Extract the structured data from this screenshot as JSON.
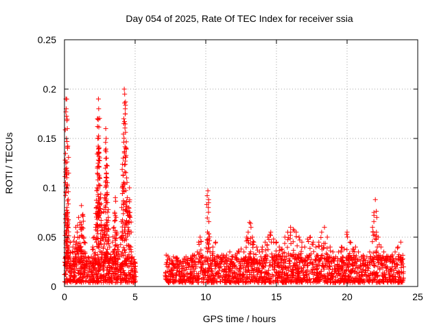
{
  "chart_data": {
    "type": "scatter",
    "title": "Day 054 of 2025, Rate Of TEC Index for receiver ssia",
    "xlabel": "GPS time / hours",
    "ylabel": "ROTI / TECUs",
    "xlim": [
      0,
      25
    ],
    "ylim": [
      0,
      0.25
    ],
    "x_ticks": [
      0,
      5,
      10,
      15,
      20,
      25
    ],
    "x_tick_labels": [
      "0",
      "5",
      "10",
      "15",
      "20",
      "25"
    ],
    "y_ticks": [
      0,
      0.05,
      0.1,
      0.15,
      0.2,
      0.25
    ],
    "y_tick_labels": [
      "0",
      "0.05",
      "0.1",
      "0.15",
      "0.2",
      "0.25"
    ],
    "grid": true,
    "marker": "+",
    "marker_color": "#ff0000",
    "series": [
      {
        "name": "ROTI",
        "points": [
          [
            0.05,
            0.012
          ],
          [
            0.08,
            0.03
          ],
          [
            0.1,
            0.19
          ],
          [
            0.12,
            0.18
          ],
          [
            0.14,
            0.15
          ],
          [
            0.15,
            0.12
          ],
          [
            0.17,
            0.1
          ],
          [
            0.18,
            0.08
          ],
          [
            0.2,
            0.16
          ],
          [
            0.22,
            0.14
          ],
          [
            0.25,
            0.06
          ],
          [
            0.3,
            0.04
          ],
          [
            0.35,
            0.03
          ],
          [
            0.4,
            0.045
          ],
          [
            0.45,
            0.02
          ],
          [
            0.5,
            0.015
          ],
          [
            0.55,
            0.035
          ],
          [
            0.6,
            0.04
          ],
          [
            0.65,
            0.025
          ],
          [
            0.7,
            0.05
          ],
          [
            0.75,
            0.03
          ],
          [
            0.8,
            0.06
          ],
          [
            0.85,
            0.045
          ],
          [
            0.9,
            0.055
          ],
          [
            0.95,
            0.035
          ],
          [
            1.0,
            0.07
          ],
          [
            1.05,
            0.05
          ],
          [
            1.1,
            0.065
          ],
          [
            1.15,
            0.04
          ],
          [
            1.2,
            0.082
          ],
          [
            1.25,
            0.06
          ],
          [
            1.3,
            0.073
          ],
          [
            1.35,
            0.05
          ],
          [
            1.4,
            0.045
          ],
          [
            1.5,
            0.03
          ],
          [
            1.6,
            0.025
          ],
          [
            1.7,
            0.02
          ],
          [
            1.8,
            0.018
          ],
          [
            1.9,
            0.03
          ],
          [
            2.0,
            0.04
          ],
          [
            2.1,
            0.05
          ],
          [
            2.2,
            0.06
          ],
          [
            2.25,
            0.08
          ],
          [
            2.3,
            0.1
          ],
          [
            2.33,
            0.12
          ],
          [
            2.36,
            0.15
          ],
          [
            2.38,
            0.17
          ],
          [
            2.4,
            0.19
          ],
          [
            2.42,
            0.18
          ],
          [
            2.45,
            0.14
          ],
          [
            2.5,
            0.11
          ],
          [
            2.55,
            0.09
          ],
          [
            2.6,
            0.075
          ],
          [
            2.65,
            0.06
          ],
          [
            2.7,
            0.05
          ],
          [
            2.75,
            0.04
          ],
          [
            2.8,
            0.055
          ],
          [
            2.85,
            0.09
          ],
          [
            2.9,
            0.12
          ],
          [
            2.92,
            0.16
          ],
          [
            2.95,
            0.15
          ],
          [
            2.98,
            0.13
          ],
          [
            3.0,
            0.11
          ],
          [
            3.05,
            0.085
          ],
          [
            3.1,
            0.07
          ],
          [
            3.15,
            0.05
          ],
          [
            3.2,
            0.04
          ],
          [
            3.3,
            0.03
          ],
          [
            3.4,
            0.045
          ],
          [
            3.5,
            0.06
          ],
          [
            3.55,
            0.075
          ],
          [
            3.6,
            0.09
          ],
          [
            3.65,
            0.07
          ],
          [
            3.7,
            0.055
          ],
          [
            3.8,
            0.04
          ],
          [
            3.9,
            0.03
          ],
          [
            4.0,
            0.05
          ],
          [
            4.05,
            0.08
          ],
          [
            4.1,
            0.1
          ],
          [
            4.15,
            0.13
          ],
          [
            4.2,
            0.17
          ],
          [
            4.23,
            0.2
          ],
          [
            4.26,
            0.195
          ],
          [
            4.3,
            0.18
          ],
          [
            4.35,
            0.14
          ],
          [
            4.4,
            0.11
          ],
          [
            4.45,
            0.09
          ],
          [
            4.5,
            0.06
          ],
          [
            4.55,
            0.08
          ],
          [
            4.6,
            0.1
          ],
          [
            4.65,
            0.07
          ],
          [
            4.7,
            0.04
          ],
          [
            4.8,
            0.03
          ],
          [
            4.9,
            0.02
          ],
          [
            5.0,
            0.015
          ],
          [
            5.05,
            0.01
          ],
          [
            7.2,
            0.01
          ],
          [
            7.4,
            0.015
          ],
          [
            7.6,
            0.012
          ],
          [
            7.8,
            0.02
          ],
          [
            8.0,
            0.018
          ],
          [
            8.2,
            0.025
          ],
          [
            8.4,
            0.02
          ],
          [
            8.6,
            0.03
          ],
          [
            8.8,
            0.022
          ],
          [
            9.0,
            0.028
          ],
          [
            9.2,
            0.025
          ],
          [
            9.4,
            0.035
          ],
          [
            9.5,
            0.045
          ],
          [
            9.6,
            0.05
          ],
          [
            9.8,
            0.03
          ],
          [
            10.0,
            0.025
          ],
          [
            10.1,
            0.092
          ],
          [
            10.15,
            0.097
          ],
          [
            10.2,
            0.088
          ],
          [
            10.3,
            0.035
          ],
          [
            10.5,
            0.04
          ],
          [
            10.7,
            0.045
          ],
          [
            10.9,
            0.03
          ],
          [
            11.1,
            0.025
          ],
          [
            11.3,
            0.03
          ],
          [
            11.5,
            0.028
          ],
          [
            11.7,
            0.035
          ],
          [
            11.9,
            0.03
          ],
          [
            12.1,
            0.032
          ],
          [
            12.3,
            0.036
          ],
          [
            12.5,
            0.038
          ],
          [
            12.7,
            0.035
          ],
          [
            12.9,
            0.05
          ],
          [
            13.0,
            0.055
          ],
          [
            13.1,
            0.065
          ],
          [
            13.2,
            0.06
          ],
          [
            13.3,
            0.05
          ],
          [
            13.4,
            0.045
          ],
          [
            13.6,
            0.04
          ],
          [
            13.8,
            0.035
          ],
          [
            14.0,
            0.04
          ],
          [
            14.2,
            0.045
          ],
          [
            14.4,
            0.05
          ],
          [
            14.6,
            0.055
          ],
          [
            14.8,
            0.048
          ],
          [
            15.0,
            0.045
          ],
          [
            15.2,
            0.04
          ],
          [
            15.4,
            0.038
          ],
          [
            15.6,
            0.05
          ],
          [
            15.8,
            0.055
          ],
          [
            16.0,
            0.06
          ],
          [
            16.2,
            0.058
          ],
          [
            16.4,
            0.055
          ],
          [
            16.6,
            0.05
          ],
          [
            16.8,
            0.045
          ],
          [
            17.0,
            0.04
          ],
          [
            17.2,
            0.048
          ],
          [
            17.4,
            0.05
          ],
          [
            17.6,
            0.045
          ],
          [
            17.8,
            0.04
          ],
          [
            18.0,
            0.045
          ],
          [
            18.2,
            0.055
          ],
          [
            18.4,
            0.06
          ],
          [
            18.6,
            0.05
          ],
          [
            18.8,
            0.04
          ],
          [
            19.0,
            0.035
          ],
          [
            19.2,
            0.03
          ],
          [
            19.4,
            0.035
          ],
          [
            19.6,
            0.04
          ],
          [
            19.8,
            0.038
          ],
          [
            20.0,
            0.055
          ],
          [
            20.2,
            0.045
          ],
          [
            20.4,
            0.038
          ],
          [
            20.6,
            0.04
          ],
          [
            20.8,
            0.035
          ],
          [
            21.0,
            0.03
          ],
          [
            21.2,
            0.028
          ],
          [
            21.4,
            0.03
          ],
          [
            21.6,
            0.035
          ],
          [
            21.8,
            0.06
          ],
          [
            21.9,
            0.075
          ],
          [
            22.0,
            0.088
          ],
          [
            22.1,
            0.07
          ],
          [
            22.2,
            0.05
          ],
          [
            22.4,
            0.04
          ],
          [
            22.6,
            0.035
          ],
          [
            22.8,
            0.03
          ],
          [
            23.0,
            0.028
          ],
          [
            23.2,
            0.032
          ],
          [
            23.4,
            0.035
          ],
          [
            23.6,
            0.04
          ],
          [
            23.8,
            0.045
          ],
          [
            24.0,
            0.02
          ]
        ],
        "dense_bands": [
          {
            "x_start": 0.0,
            "x_end": 5.05,
            "y_min": 0.004,
            "y_max": 0.03
          },
          {
            "x_start": 7.1,
            "x_end": 24.0,
            "y_min": 0.004,
            "y_max": 0.032
          }
        ]
      }
    ]
  }
}
